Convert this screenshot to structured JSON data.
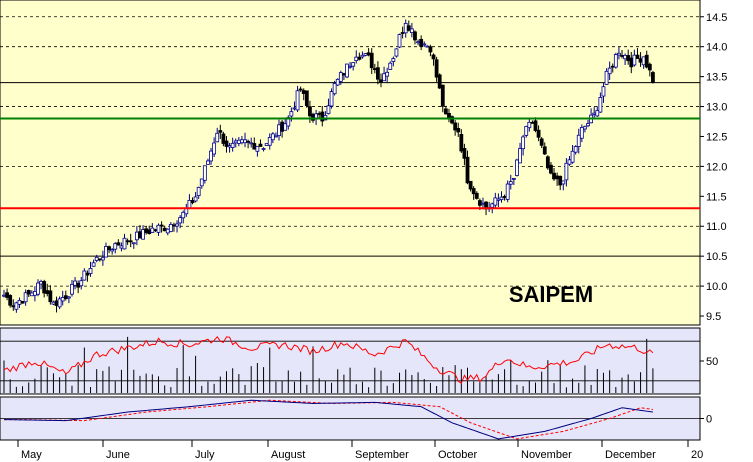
{
  "colors": {
    "background": "#ffffcc",
    "indicator_background": "#e6e6fa",
    "candle_up": "#00008b",
    "candle_down": "#000000",
    "support_line": "#ff0000",
    "resistance_line": "#008000",
    "rsi_line": "#ff0000",
    "macd_line": "#000080",
    "signal_line": "#ff0000"
  },
  "chart_data": [
    {
      "type": "candlestick",
      "title": "SAIPEM",
      "xlabel": "",
      "ylabel": "",
      "months": [
        "May",
        "June",
        "July",
        "August",
        "September",
        "October",
        "November",
        "December"
      ],
      "next_year_label": "20",
      "yticks": [
        "9.5",
        "10.0",
        "10.5",
        "11.0",
        "11.5",
        "12.0",
        "12.5",
        "13.0",
        "13.5",
        "14.0",
        "14.5"
      ],
      "ylim": [
        9.35,
        14.78
      ],
      "dashed_gridlines": [
        10.0,
        11.0,
        12.0,
        13.0,
        14.0,
        14.5
      ],
      "solid_levels": [
        10.5,
        13.4
      ],
      "support": 11.3,
      "resistance": 12.8,
      "close_keypoints": [
        [
          0,
          9.85
        ],
        [
          3,
          9.7
        ],
        [
          8,
          9.85
        ],
        [
          12,
          10.05
        ],
        [
          16,
          9.7
        ],
        [
          20,
          9.85
        ],
        [
          25,
          10.1
        ],
        [
          30,
          10.45
        ],
        [
          36,
          10.7
        ],
        [
          42,
          10.8
        ],
        [
          48,
          10.95
        ],
        [
          53,
          11.0
        ],
        [
          58,
          11.2
        ],
        [
          62,
          11.5
        ],
        [
          66,
          12.1
        ],
        [
          69,
          12.6
        ],
        [
          73,
          12.3
        ],
        [
          78,
          12.4
        ],
        [
          84,
          12.35
        ],
        [
          88,
          12.55
        ],
        [
          92,
          12.8
        ],
        [
          96,
          13.3
        ],
        [
          99,
          12.85
        ],
        [
          103,
          12.8
        ],
        [
          107,
          13.35
        ],
        [
          111,
          13.65
        ],
        [
          114,
          13.9
        ],
        [
          118,
          13.8
        ],
        [
          122,
          13.45
        ],
        [
          126,
          13.85
        ],
        [
          130,
          14.45
        ],
        [
          134,
          14.1
        ],
        [
          138,
          14.0
        ],
        [
          140,
          13.5
        ],
        [
          143,
          12.8
        ],
        [
          147,
          12.6
        ],
        [
          150,
          11.8
        ],
        [
          153,
          11.5
        ],
        [
          156,
          11.3
        ],
        [
          159,
          11.4
        ],
        [
          162,
          11.55
        ],
        [
          165,
          11.8
        ],
        [
          168,
          12.5
        ],
        [
          171,
          12.75
        ],
        [
          174,
          12.3
        ],
        [
          177,
          11.8
        ],
        [
          180,
          11.7
        ],
        [
          183,
          12.1
        ],
        [
          187,
          12.6
        ],
        [
          191,
          12.85
        ],
        [
          195,
          13.5
        ],
        [
          199,
          13.95
        ],
        [
          203,
          13.75
        ],
        [
          207,
          13.85
        ],
        [
          210,
          13.45
        ]
      ],
      "n_bars": 211
    },
    {
      "type": "line+bar",
      "ylabel": "",
      "yticks": [
        "50"
      ],
      "ylim": [
        0,
        100
      ],
      "levels": [
        20,
        80
      ],
      "rsi_keypoints": [
        [
          0,
          35
        ],
        [
          10,
          50
        ],
        [
          20,
          30
        ],
        [
          30,
          60
        ],
        [
          40,
          70
        ],
        [
          50,
          80
        ],
        [
          60,
          75
        ],
        [
          70,
          85
        ],
        [
          80,
          70
        ],
        [
          90,
          75
        ],
        [
          100,
          65
        ],
        [
          110,
          78
        ],
        [
          120,
          60
        ],
        [
          130,
          80
        ],
        [
          140,
          40
        ],
        [
          148,
          22
        ],
        [
          155,
          25
        ],
        [
          162,
          55
        ],
        [
          170,
          40
        ],
        [
          178,
          45
        ],
        [
          185,
          50
        ],
        [
          195,
          75
        ],
        [
          205,
          70
        ],
        [
          210,
          60
        ]
      ],
      "volume_bar_range": [
        10,
        90
      ]
    },
    {
      "type": "line",
      "ylabel": "",
      "yticks": [
        "0"
      ],
      "ylim": [
        -1,
        1
      ],
      "macd_keypoints": [
        [
          0,
          -0.05
        ],
        [
          20,
          -0.1
        ],
        [
          40,
          0.3
        ],
        [
          60,
          0.55
        ],
        [
          80,
          0.85
        ],
        [
          100,
          0.7
        ],
        [
          120,
          0.75
        ],
        [
          135,
          0.55
        ],
        [
          145,
          -0.2
        ],
        [
          160,
          -0.95
        ],
        [
          175,
          -0.6
        ],
        [
          190,
          0.0
        ],
        [
          200,
          0.5
        ],
        [
          210,
          0.3
        ]
      ],
      "signal_lag_bars": 6
    }
  ]
}
